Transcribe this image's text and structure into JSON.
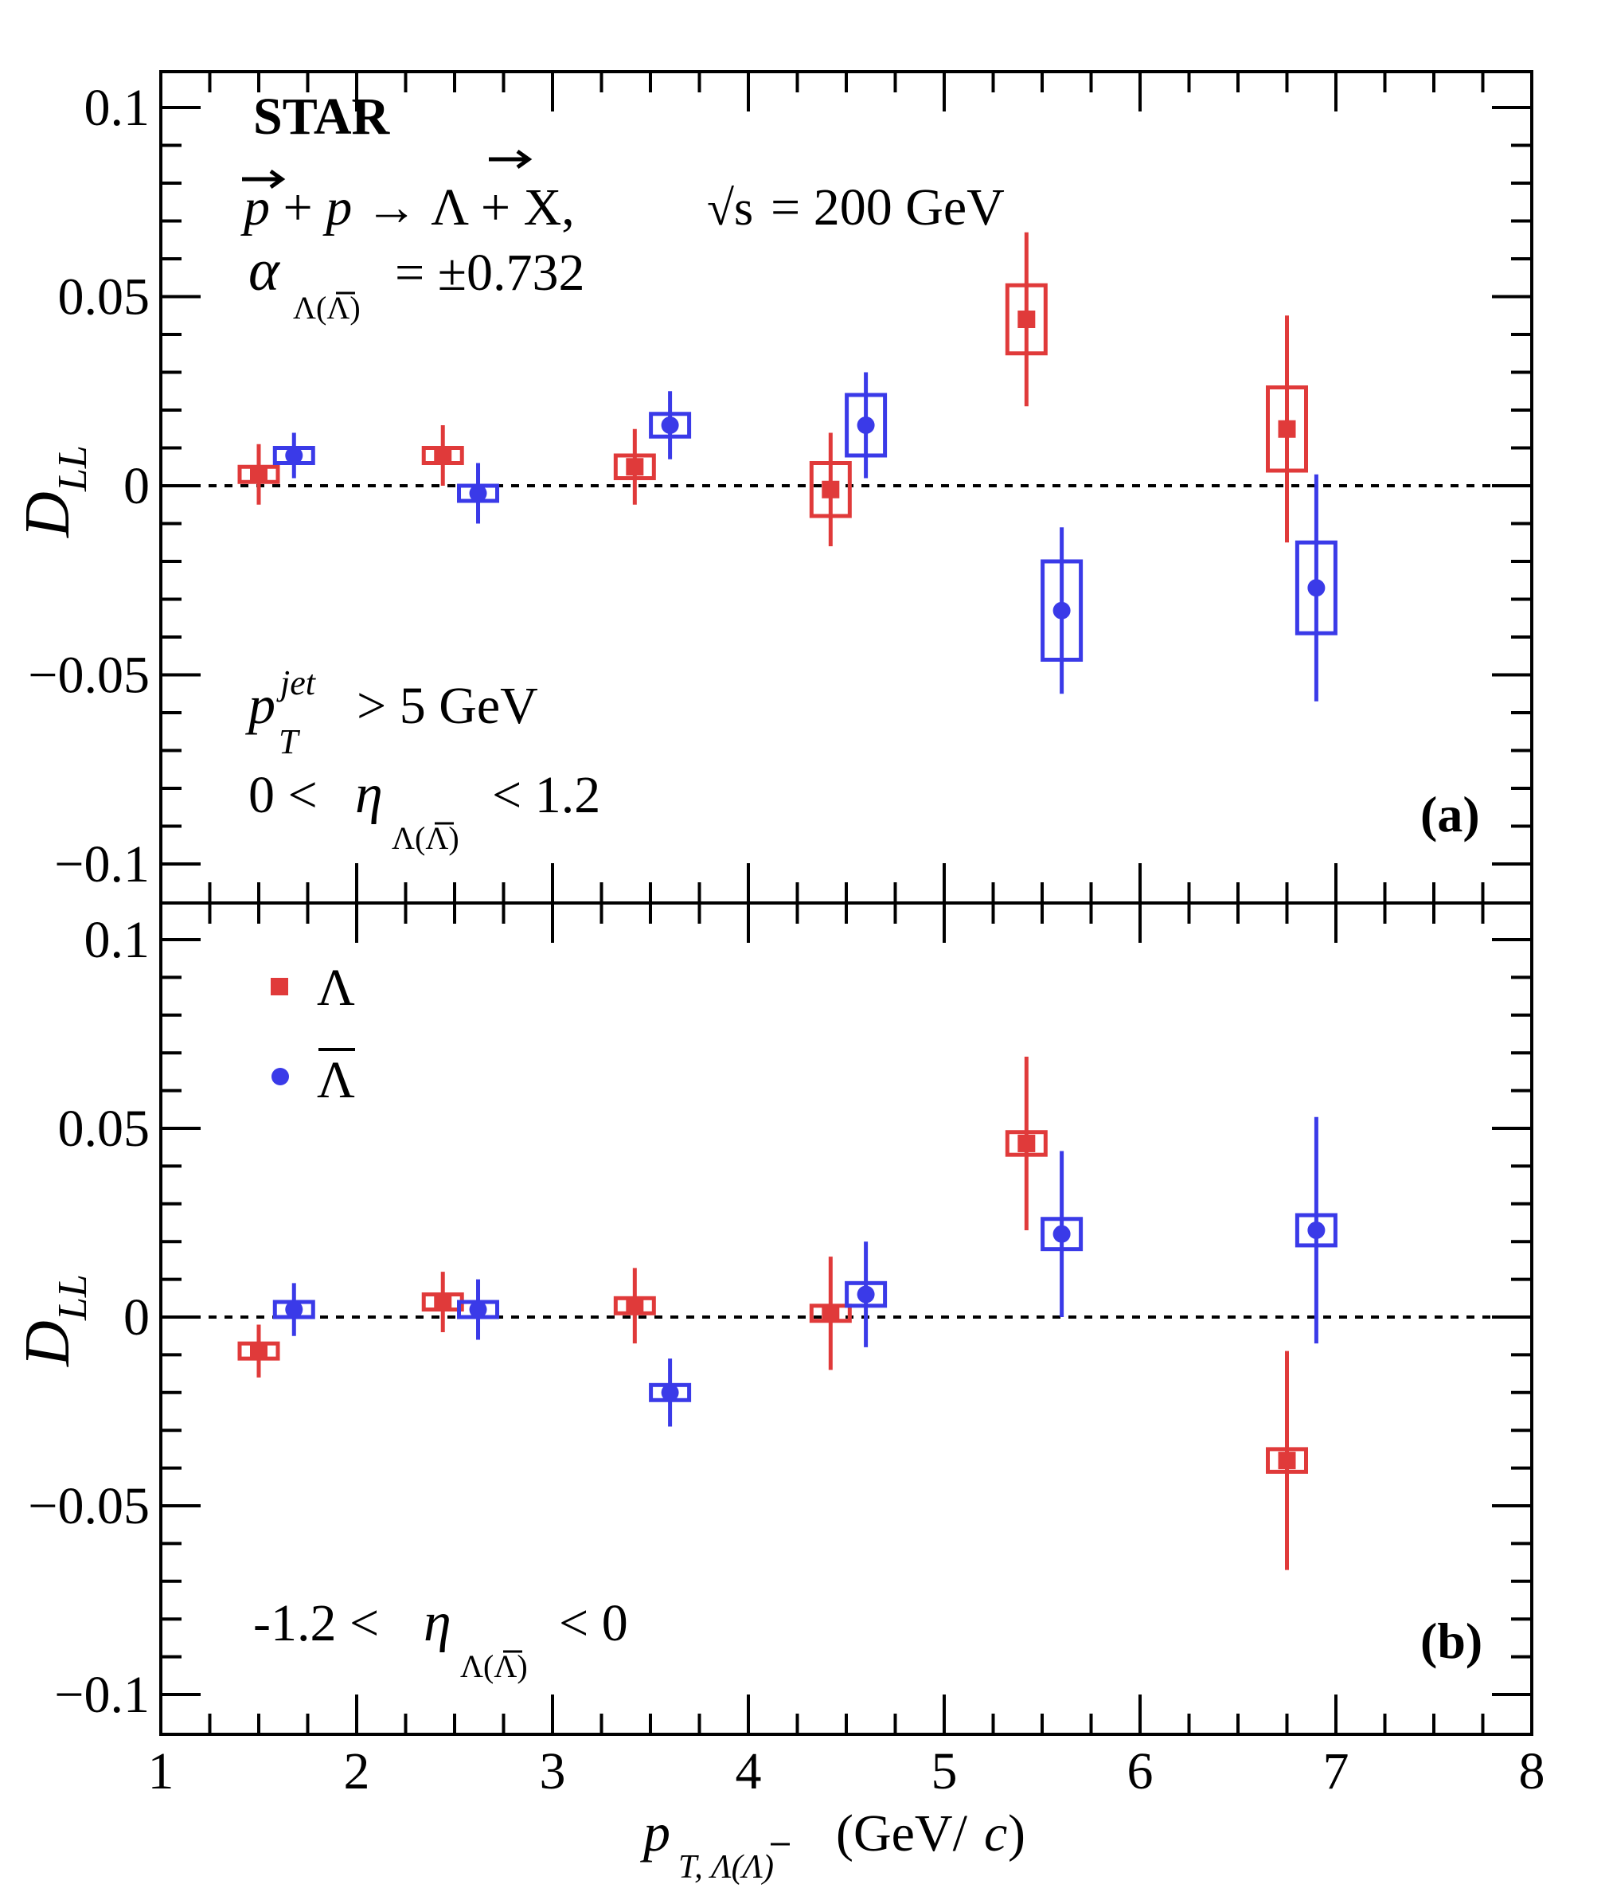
{
  "header": {
    "experiment": "STAR",
    "process": "p + p → Λ + X,",
    "energy": "= 200 GeV",
    "sqrt_s": "√s",
    "alpha_symbol": "α",
    "alpha_sub": "Λ(Λ)",
    "alpha_value": "= ±0.732",
    "jet_cut_p": "p",
    "jet_cut_sup": "jet",
    "jet_cut_sub": "T",
    "jet_cut_value": "> 5 GeV"
  },
  "panel_a": {
    "label": "(a)",
    "eta_low": "0 <",
    "eta_symbol": "η",
    "eta_sub": "Λ(Λ)",
    "eta_high": "< 1.2"
  },
  "panel_b": {
    "label": "(b)",
    "eta_low": "-1.2 <",
    "eta_symbol": "η",
    "eta_sub": "Λ(Λ)",
    "eta_high": "< 0"
  },
  "legend": {
    "lambda": "Λ",
    "antilambda": "Λ"
  },
  "axes": {
    "ylabel_main": "D",
    "ylabel_sub": "LL",
    "xlabel_p": "p",
    "xlabel_sub": "T, Λ(Λ)",
    "xlabel_unit": "(GeV/",
    "xlabel_c": "c",
    "xlabel_close": ")"
  },
  "colors": {
    "lambda": "#e03a3a",
    "antilambda": "#3a3ae8"
  },
  "chart_data": [
    {
      "type": "scatter",
      "panel": "a",
      "title": "",
      "xlabel": "p_T,Λ(Λ) (GeV/c)",
      "ylabel": "D_LL",
      "xlim": [
        1,
        8
      ],
      "ylim": [
        -0.1,
        0.1
      ],
      "xticks": [
        "1",
        "2",
        "3",
        "4",
        "5",
        "6",
        "7",
        "8"
      ],
      "yticks": [
        "−0.1",
        "−0.05",
        "0",
        "0.05",
        "0.1"
      ],
      "reference_line": 0,
      "series": [
        {
          "name": "Λ",
          "marker": "square",
          "points": [
            {
              "x": 1.5,
              "y": 0.003,
              "stat": 0.008,
              "sys": 0.002
            },
            {
              "x": 2.44,
              "y": 0.008,
              "stat": 0.008,
              "sys": 0.002
            },
            {
              "x": 3.42,
              "y": 0.005,
              "stat": 0.01,
              "sys": 0.003
            },
            {
              "x": 4.42,
              "y": -0.001,
              "stat": 0.015,
              "sys": 0.007
            },
            {
              "x": 5.42,
              "y": 0.044,
              "stat": 0.023,
              "sys": 0.009
            },
            {
              "x": 6.75,
              "y": 0.015,
              "stat": 0.03,
              "sys": 0.011
            }
          ]
        },
        {
          "name": "Λ",
          "marker": "circle",
          "points": [
            {
              "x": 1.68,
              "y": 0.008,
              "stat": 0.006,
              "sys": 0.002
            },
            {
              "x": 2.62,
              "y": -0.002,
              "stat": 0.008,
              "sys": 0.002
            },
            {
              "x": 3.6,
              "y": 0.016,
              "stat": 0.009,
              "sys": 0.003
            },
            {
              "x": 4.6,
              "y": 0.016,
              "stat": 0.014,
              "sys": 0.008
            },
            {
              "x": 5.6,
              "y": -0.033,
              "stat": 0.022,
              "sys": 0.013
            },
            {
              "x": 6.9,
              "y": -0.027,
              "stat": 0.03,
              "sys": 0.012
            }
          ]
        }
      ]
    },
    {
      "type": "scatter",
      "panel": "b",
      "title": "",
      "xlabel": "p_T,Λ(Λ) (GeV/c)",
      "ylabel": "D_LL",
      "xlim": [
        1,
        8
      ],
      "ylim": [
        -0.1,
        0.1
      ],
      "xticks": [
        "1",
        "2",
        "3",
        "4",
        "5",
        "6",
        "7",
        "8"
      ],
      "yticks": [
        "−0.1",
        "−0.05",
        "0",
        "0.05",
        "0.1"
      ],
      "reference_line": 0,
      "series": [
        {
          "name": "Λ",
          "marker": "square",
          "points": [
            {
              "x": 1.5,
              "y": -0.009,
              "stat": 0.007,
              "sys": 0.002
            },
            {
              "x": 2.44,
              "y": 0.004,
              "stat": 0.008,
              "sys": 0.002
            },
            {
              "x": 3.42,
              "y": 0.003,
              "stat": 0.01,
              "sys": 0.002
            },
            {
              "x": 4.42,
              "y": 0.001,
              "stat": 0.015,
              "sys": 0.002
            },
            {
              "x": 5.42,
              "y": 0.046,
              "stat": 0.023,
              "sys": 0.003
            },
            {
              "x": 6.75,
              "y": -0.038,
              "stat": 0.029,
              "sys": 0.003
            }
          ]
        },
        {
          "name": "Λ",
          "marker": "circle",
          "points": [
            {
              "x": 1.68,
              "y": 0.002,
              "stat": 0.007,
              "sys": 0.002
            },
            {
              "x": 2.62,
              "y": 0.002,
              "stat": 0.008,
              "sys": 0.002
            },
            {
              "x": 3.6,
              "y": -0.02,
              "stat": 0.009,
              "sys": 0.002
            },
            {
              "x": 4.6,
              "y": 0.006,
              "stat": 0.014,
              "sys": 0.003
            },
            {
              "x": 5.6,
              "y": 0.022,
              "stat": 0.022,
              "sys": 0.004
            },
            {
              "x": 6.9,
              "y": 0.023,
              "stat": 0.03,
              "sys": 0.004
            }
          ]
        }
      ]
    }
  ]
}
